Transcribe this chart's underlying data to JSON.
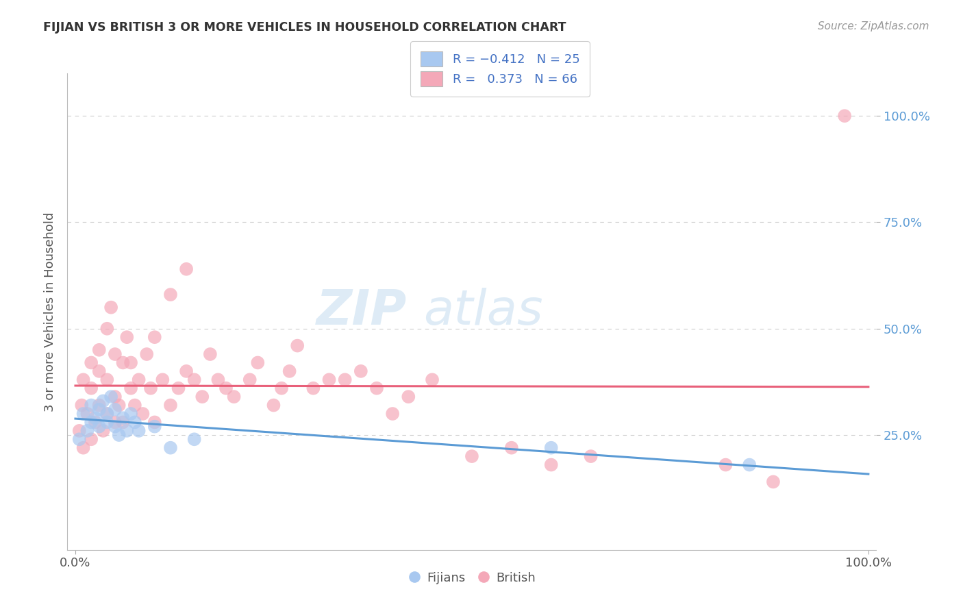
{
  "title": "FIJIAN VS BRITISH 3 OR MORE VEHICLES IN HOUSEHOLD CORRELATION CHART",
  "source": "Source: ZipAtlas.com",
  "ylabel": "3 or more Vehicles in Household",
  "ytick_labels": [
    "25.0%",
    "50.0%",
    "75.0%",
    "100.0%"
  ],
  "ytick_values": [
    0.25,
    0.5,
    0.75,
    1.0
  ],
  "legend_label1": "Fijians",
  "legend_label2": "British",
  "fijian_color": "#a8c8f0",
  "british_color": "#f4a8b8",
  "fijian_line_color": "#5b9bd5",
  "british_line_color": "#e8607a",
  "watermark_color": "#c8dff0",
  "background_color": "#ffffff",
  "legend_text_color": "#4472c4",
  "fijian_x": [
    0.005,
    0.01,
    0.015,
    0.02,
    0.02,
    0.025,
    0.03,
    0.03,
    0.035,
    0.04,
    0.04,
    0.045,
    0.05,
    0.05,
    0.055,
    0.06,
    0.065,
    0.07,
    0.075,
    0.08,
    0.1,
    0.12,
    0.15,
    0.6,
    0.85
  ],
  "fijian_y": [
    0.24,
    0.3,
    0.26,
    0.28,
    0.32,
    0.29,
    0.31,
    0.27,
    0.33,
    0.3,
    0.28,
    0.34,
    0.27,
    0.31,
    0.25,
    0.29,
    0.26,
    0.3,
    0.28,
    0.26,
    0.27,
    0.22,
    0.24,
    0.22,
    0.18
  ],
  "british_x": [
    0.005,
    0.008,
    0.01,
    0.01,
    0.015,
    0.02,
    0.02,
    0.02,
    0.025,
    0.03,
    0.03,
    0.03,
    0.035,
    0.04,
    0.04,
    0.04,
    0.045,
    0.05,
    0.05,
    0.05,
    0.055,
    0.06,
    0.06,
    0.065,
    0.07,
    0.07,
    0.075,
    0.08,
    0.085,
    0.09,
    0.095,
    0.1,
    0.1,
    0.11,
    0.12,
    0.12,
    0.13,
    0.14,
    0.14,
    0.15,
    0.16,
    0.17,
    0.18,
    0.19,
    0.2,
    0.22,
    0.23,
    0.25,
    0.26,
    0.27,
    0.28,
    0.3,
    0.32,
    0.34,
    0.36,
    0.38,
    0.4,
    0.42,
    0.45,
    0.5,
    0.55,
    0.6,
    0.65,
    0.82,
    0.88,
    0.97
  ],
  "british_y": [
    0.26,
    0.32,
    0.22,
    0.38,
    0.3,
    0.24,
    0.36,
    0.42,
    0.28,
    0.32,
    0.4,
    0.45,
    0.26,
    0.3,
    0.38,
    0.5,
    0.55,
    0.28,
    0.34,
    0.44,
    0.32,
    0.28,
    0.42,
    0.48,
    0.36,
    0.42,
    0.32,
    0.38,
    0.3,
    0.44,
    0.36,
    0.28,
    0.48,
    0.38,
    0.32,
    0.58,
    0.36,
    0.4,
    0.64,
    0.38,
    0.34,
    0.44,
    0.38,
    0.36,
    0.34,
    0.38,
    0.42,
    0.32,
    0.36,
    0.4,
    0.46,
    0.36,
    0.38,
    0.38,
    0.4,
    0.36,
    0.3,
    0.34,
    0.38,
    0.2,
    0.22,
    0.18,
    0.2,
    0.18,
    0.14,
    1.0
  ]
}
